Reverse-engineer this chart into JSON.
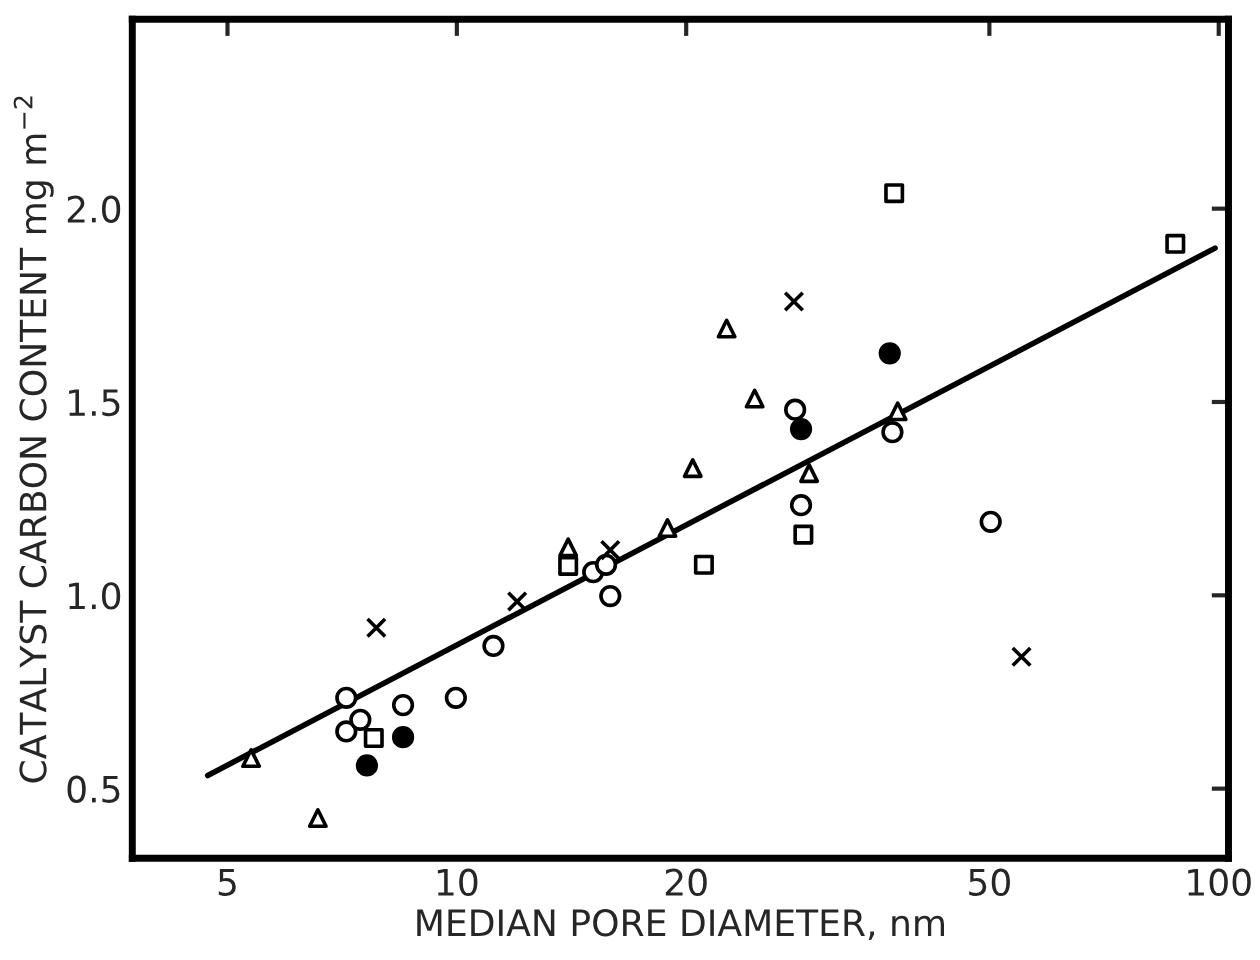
{
  "chart_data": {
    "type": "scatter",
    "xlabel": "MEDIAN PORE DIAMETER, nm",
    "ylabel": "CATALYST CARBON CONTENT mg m$^{−2}$",
    "log": "x",
    "grid": false,
    "xlim": [
      3.75,
      103
    ],
    "xticks": [
      5,
      10,
      20,
      50,
      100
    ],
    "ylim": [
      0.32,
      2.49
    ],
    "yticks": [
      {
        "value": 0.5,
        "label": "0.5"
      },
      {
        "value": 1.0,
        "label": "1.0"
      },
      {
        "value": 1.5,
        "label": "1.5"
      },
      {
        "value": 2.0,
        "label": "2.0"
      }
    ],
    "series": [
      {
        "marker": "circle",
        "color": "#ffffff",
        "x": [
          7.16,
          7.16,
          7.47,
          8.5,
          9.97,
          11.17,
          15.1,
          15.7,
          15.9,
          27.8,
          28.3,
          37.3,
          50.2
        ],
        "values": [
          0.735,
          0.648,
          0.678,
          0.716,
          0.735,
          0.869,
          1.06,
          1.079,
          0.998,
          1.48,
          1.233,
          1.422,
          1.19
        ]
      },
      {
        "marker": "circle",
        "color": "#000000",
        "x": [
          7.62,
          8.5,
          28.3,
          37.0
        ],
        "values": [
          0.56,
          0.633,
          1.43,
          1.626
        ]
      },
      {
        "marker": "triangle",
        "color": "#ffffff",
        "x": [
          5.37,
          6.57,
          14.0,
          18.9,
          20.4,
          22.6,
          24.6,
          29.0,
          37.9
        ],
        "values": [
          0.579,
          0.424,
          1.124,
          1.174,
          1.329,
          1.69,
          1.509,
          1.316,
          1.476
        ]
      },
      {
        "marker": "square",
        "color": "#ffffff",
        "x": [
          7.78,
          14.0,
          21.1,
          28.5,
          37.5,
          87.7
        ],
        "values": [
          0.631,
          1.076,
          1.079,
          1.157,
          2.04,
          1.909
        ]
      },
      {
        "marker": "cross",
        "color": "#000000",
        "x": [
          7.84,
          12.0,
          15.9,
          27.7,
          55.1
        ],
        "values": [
          0.916,
          0.984,
          1.117,
          1.76,
          0.841
        ]
      },
      {
        "type": "line",
        "line_style": "solid",
        "color": "#000000",
        "x": [
          4.71,
          98.9
        ],
        "values": [
          0.534,
          1.898
        ]
      }
    ]
  }
}
